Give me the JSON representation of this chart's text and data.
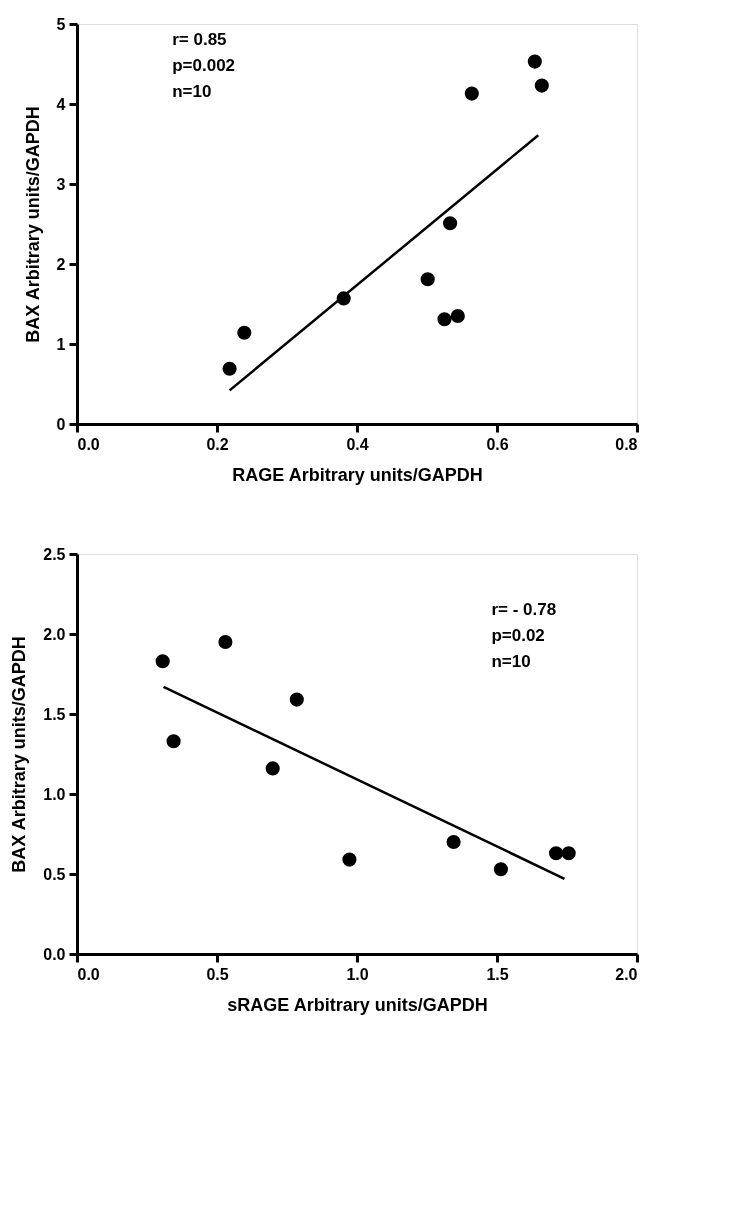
{
  "chart_data": [
    {
      "type": "scatter",
      "xlabel": "RAGE Arbitrary units/GAPDH",
      "ylabel": "BAX Arbitrary units/GAPDH",
      "xlim": [
        0,
        0.8
      ],
      "xticks": [
        {
          "value": 0,
          "label": "0.0"
        },
        0.2,
        0.4,
        0.6,
        0.8
      ],
      "ylim": [
        0,
        5
      ],
      "yticks": [
        0,
        1,
        2,
        3,
        4,
        5
      ],
      "grid": false,
      "marker": "circle",
      "series": [
        {
          "color": "#000000",
          "x": [
            0.218,
            0.239,
            0.381,
            0.501,
            0.525,
            0.544,
            0.533,
            0.564,
            0.654,
            0.664
          ],
          "values": [
            0.69,
            1.14,
            1.57,
            1.81,
            1.31,
            1.35,
            2.51,
            4.13,
            4.53,
            4.23
          ]
        },
        {
          "type": "line",
          "color": "#000000",
          "marker": "none",
          "line_style": "solid",
          "x": [
            0.218,
            0.659
          ],
          "values": [
            0.42,
            3.61
          ]
        }
      ],
      "annotations": [
        "r= 0.85",
        "p=0.002",
        "n=10"
      ]
    },
    {
      "type": "scatter",
      "xlabel": "sRAGE Arbitrary units/GAPDH",
      "ylabel": "BAX Arbitrary units/GAPDH",
      "xlim": [
        0,
        2
      ],
      "xticks": [
        {
          "value": 0,
          "label": "0.0"
        },
        0.5,
        {
          "value": 1,
          "label": "1.0"
        },
        1.5,
        {
          "value": 2,
          "label": "2.0"
        }
      ],
      "ylim": [
        0,
        2.5
      ],
      "yticks": [
        {
          "value": 0,
          "label": "0.0"
        },
        0.5,
        {
          "value": 1,
          "label": "1.0"
        },
        1.5,
        {
          "value": 2,
          "label": "2.0"
        },
        2.5
      ],
      "grid": false,
      "marker": "circle",
      "series": [
        {
          "color": "#000000",
          "x": [
            0.306,
            0.345,
            0.53,
            0.699,
            0.785,
            0.973,
            1.345,
            1.514,
            1.711,
            1.756
          ],
          "values": [
            1.83,
            1.33,
            1.95,
            1.16,
            1.59,
            0.59,
            0.7,
            0.53,
            0.63,
            0.63
          ]
        },
        {
          "type": "line",
          "color": "#000000",
          "marker": "none",
          "line_style": "solid",
          "x": [
            0.309,
            1.741
          ],
          "values": [
            1.67,
            0.47
          ]
        }
      ],
      "annotations": [
        "r= - 0.78",
        "p=0.02",
        "n=10"
      ]
    }
  ]
}
